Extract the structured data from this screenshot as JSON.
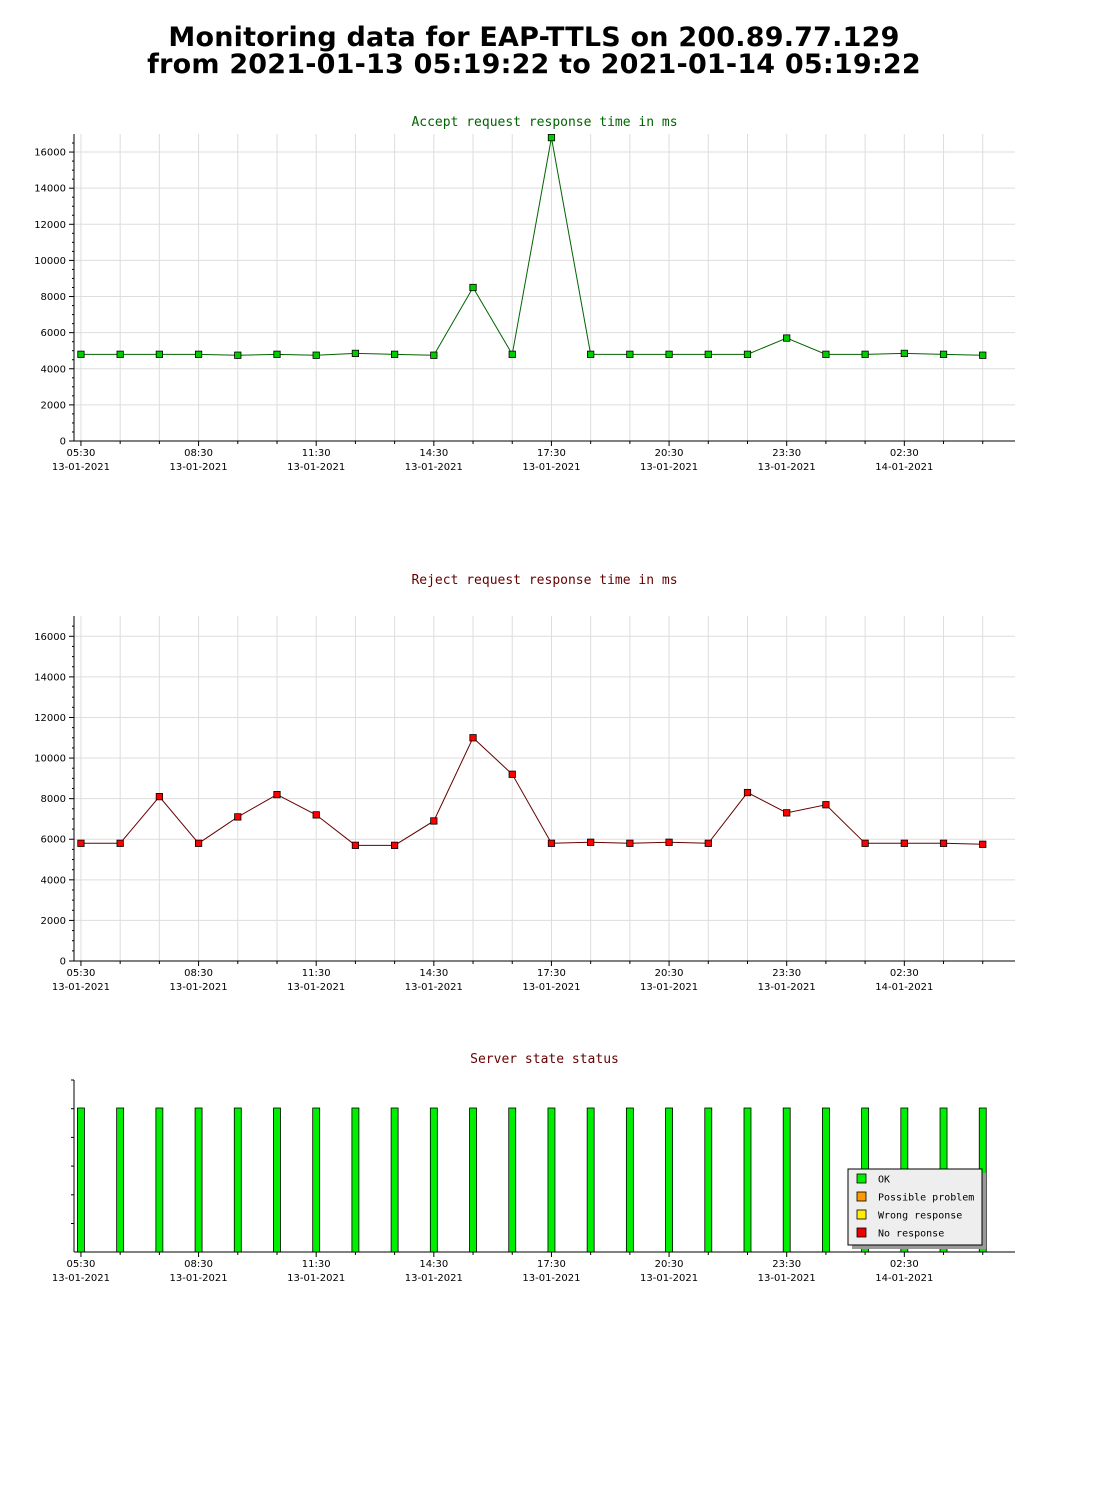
{
  "page": {
    "title_line1": "Monitoring data for EAP-TTLS on 200.89.77.129",
    "title_line2": "from 2021-01-13 05:19:22 to 2021-01-14 05:19:22"
  },
  "x_axis": {
    "start": "2021-01-13 05:19:22",
    "end": "2021-01-14 05:19:22",
    "tick_labels": [
      {
        "time": "05:30",
        "date": "13-01-2021"
      },
      {
        "time": "08:30",
        "date": "13-01-2021"
      },
      {
        "time": "11:30",
        "date": "13-01-2021"
      },
      {
        "time": "14:30",
        "date": "13-01-2021"
      },
      {
        "time": "17:30",
        "date": "13-01-2021"
      },
      {
        "time": "20:30",
        "date": "13-01-2021"
      },
      {
        "time": "23:30",
        "date": "13-01-2021"
      },
      {
        "time": "02:30",
        "date": "14-01-2021"
      }
    ]
  },
  "chart_data": [
    {
      "type": "line",
      "title": "Accept request response time in ms",
      "color": "#00cc00",
      "title_color": "#006400",
      "ylim": [
        0,
        17000
      ],
      "yticks": [
        "0",
        "2000",
        "4000",
        "6000",
        "8000",
        "10000",
        "12000",
        "14000",
        "16000"
      ],
      "grid": true,
      "x": [
        "2021-01-13 05:30",
        "2021-01-13 06:30",
        "2021-01-13 07:30",
        "2021-01-13 08:30",
        "2021-01-13 09:30",
        "2021-01-13 10:30",
        "2021-01-13 11:30",
        "2021-01-13 12:30",
        "2021-01-13 13:30",
        "2021-01-13 14:30",
        "2021-01-13 15:30",
        "2021-01-13 16:30",
        "2021-01-13 17:30",
        "2021-01-13 18:30",
        "2021-01-13 19:30",
        "2021-01-13 20:30",
        "2021-01-13 21:30",
        "2021-01-13 22:30",
        "2021-01-13 23:30",
        "2021-01-14 00:30",
        "2021-01-14 01:30",
        "2021-01-14 02:30",
        "2021-01-14 03:30",
        "2021-01-14 04:30"
      ],
      "values": [
        4800,
        4800,
        4800,
        4800,
        4750,
        4800,
        4750,
        4850,
        4800,
        4750,
        8500,
        4800,
        16800,
        4800,
        4800,
        4800,
        4800,
        4800,
        5700,
        4800,
        4800,
        4850,
        4800,
        4750
      ]
    },
    {
      "type": "line",
      "title": "Reject request response time in ms",
      "color": "#ff0000",
      "title_color": "#660000",
      "ylim": [
        0,
        17000
      ],
      "yticks": [
        "0",
        "2000",
        "4000",
        "6000",
        "8000",
        "10000",
        "12000",
        "14000",
        "16000"
      ],
      "grid": true,
      "x": [
        "2021-01-13 05:30",
        "2021-01-13 06:30",
        "2021-01-13 07:30",
        "2021-01-13 08:30",
        "2021-01-13 09:30",
        "2021-01-13 10:30",
        "2021-01-13 11:30",
        "2021-01-13 12:30",
        "2021-01-13 13:30",
        "2021-01-13 14:30",
        "2021-01-13 15:30",
        "2021-01-13 16:30",
        "2021-01-13 17:30",
        "2021-01-13 18:30",
        "2021-01-13 19:30",
        "2021-01-13 20:30",
        "2021-01-13 21:30",
        "2021-01-13 22:30",
        "2021-01-13 23:30",
        "2021-01-14 00:30",
        "2021-01-14 01:30",
        "2021-01-14 02:30",
        "2021-01-14 03:30",
        "2021-01-14 04:30"
      ],
      "values": [
        5800,
        5800,
        8100,
        5800,
        7100,
        8200,
        7200,
        5700,
        5700,
        6900,
        11000,
        9200,
        5800,
        5850,
        5800,
        5850,
        5800,
        8300,
        7300,
        7700,
        5800,
        5800,
        5800,
        5750
      ]
    },
    {
      "type": "bar",
      "title": "Server state status",
      "title_color": "#660000",
      "x": [
        "2021-01-13 05:30",
        "2021-01-13 06:30",
        "2021-01-13 07:30",
        "2021-01-13 08:30",
        "2021-01-13 09:30",
        "2021-01-13 10:30",
        "2021-01-13 11:30",
        "2021-01-13 12:30",
        "2021-01-13 13:30",
        "2021-01-13 14:30",
        "2021-01-13 15:30",
        "2021-01-13 16:30",
        "2021-01-13 17:30",
        "2021-01-13 18:30",
        "2021-01-13 19:30",
        "2021-01-13 20:30",
        "2021-01-13 21:30",
        "2021-01-13 22:30",
        "2021-01-13 23:30",
        "2021-01-14 00:30",
        "2021-01-14 01:30",
        "2021-01-14 02:30",
        "2021-01-14 03:30",
        "2021-01-14 04:30"
      ],
      "status": [
        "OK",
        "OK",
        "OK",
        "OK",
        "OK",
        "OK",
        "OK",
        "OK",
        "OK",
        "OK",
        "OK",
        "OK",
        "OK",
        "OK",
        "OK",
        "OK",
        "OK",
        "OK",
        "OK",
        "OK",
        "OK",
        "OK",
        "OK",
        "OK"
      ],
      "legend_position": "bottom-right",
      "legend": [
        {
          "label": "OK",
          "color": "#00ee00"
        },
        {
          "label": "Possible problem",
          "color": "#ff9900"
        },
        {
          "label": "Wrong response",
          "color": "#ffee00"
        },
        {
          "label": "No response",
          "color": "#ee0000"
        }
      ]
    }
  ]
}
